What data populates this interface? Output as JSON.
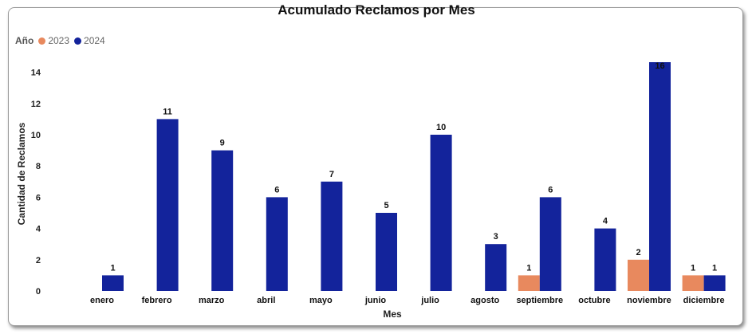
{
  "chart_data": {
    "type": "bar",
    "title": "Acumulado Reclamos por Mes",
    "xlabel": "Mes",
    "ylabel": "Cantidad de Reclamos",
    "legend_title": "Año",
    "legend_position": "top-left",
    "ylim": [
      0,
      15
    ],
    "yticks": [
      0,
      2,
      4,
      6,
      8,
      10,
      12,
      14
    ],
    "grid": false,
    "categories": [
      "enero",
      "febrero",
      "marzo",
      "abril",
      "mayo",
      "junio",
      "julio",
      "agosto",
      "septiembre",
      "octubre",
      "noviembre",
      "diciembre"
    ],
    "series": [
      {
        "name": "2023",
        "color": "#E8895E",
        "values": [
          null,
          null,
          null,
          null,
          null,
          null,
          null,
          null,
          1,
          null,
          2,
          1
        ]
      },
      {
        "name": "2024",
        "color": "#13239B",
        "values": [
          1,
          11,
          9,
          6,
          7,
          5,
          10,
          3,
          6,
          4,
          16,
          1
        ]
      }
    ]
  }
}
